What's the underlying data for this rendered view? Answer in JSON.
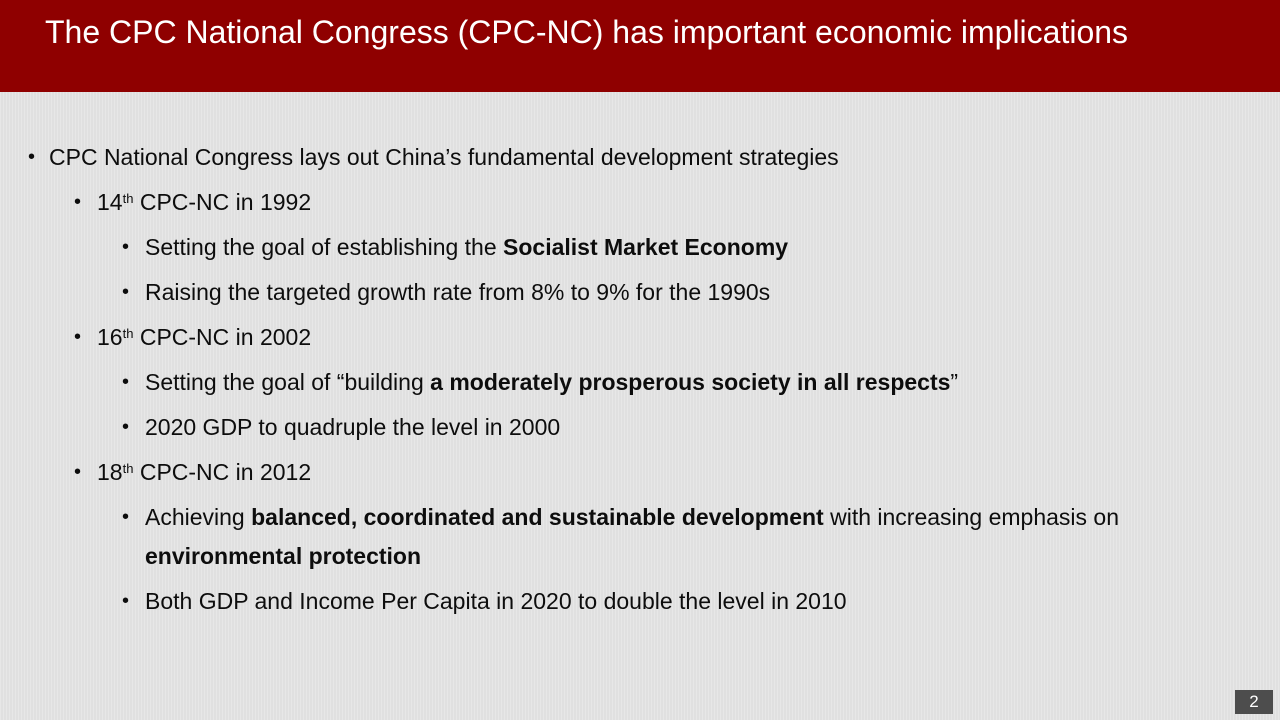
{
  "slide": {
    "title": "The CPC National Congress (CPC-NC) has important economic implications",
    "page_number": "2",
    "bullet_char": "•",
    "items": [
      {
        "text": "CPC National Congress lays out China’s fundamental development strategies"
      },
      {
        "num": "14",
        "sup": "th",
        "rest": " CPC-NC in 1992"
      },
      {
        "pre": "Setting the goal of establishing the ",
        "bold": "Socialist Market Economy"
      },
      {
        "text": "Raising the targeted growth rate from 8% to 9% for the 1990s"
      },
      {
        "num": "16",
        "sup": "th",
        "rest": " CPC-NC in 2002"
      },
      {
        "pre": "Setting the goal of “building ",
        "bold": "a moderately prosperous society in all respects",
        "post": "”"
      },
      {
        "text": "2020 GDP to quadruple the level in 2000"
      },
      {
        "num": "18",
        "sup": "th",
        "rest": " CPC-NC in 2012"
      },
      {
        "pre": "Achieving ",
        "bold": "balanced, coordinated and sustainable development",
        "post": " with increasing emphasis on"
      },
      {
        "bold": "environmental protection"
      },
      {
        "text": "Both GDP and Income Per Capita in 2020 to double the level in 2010"
      }
    ]
  }
}
